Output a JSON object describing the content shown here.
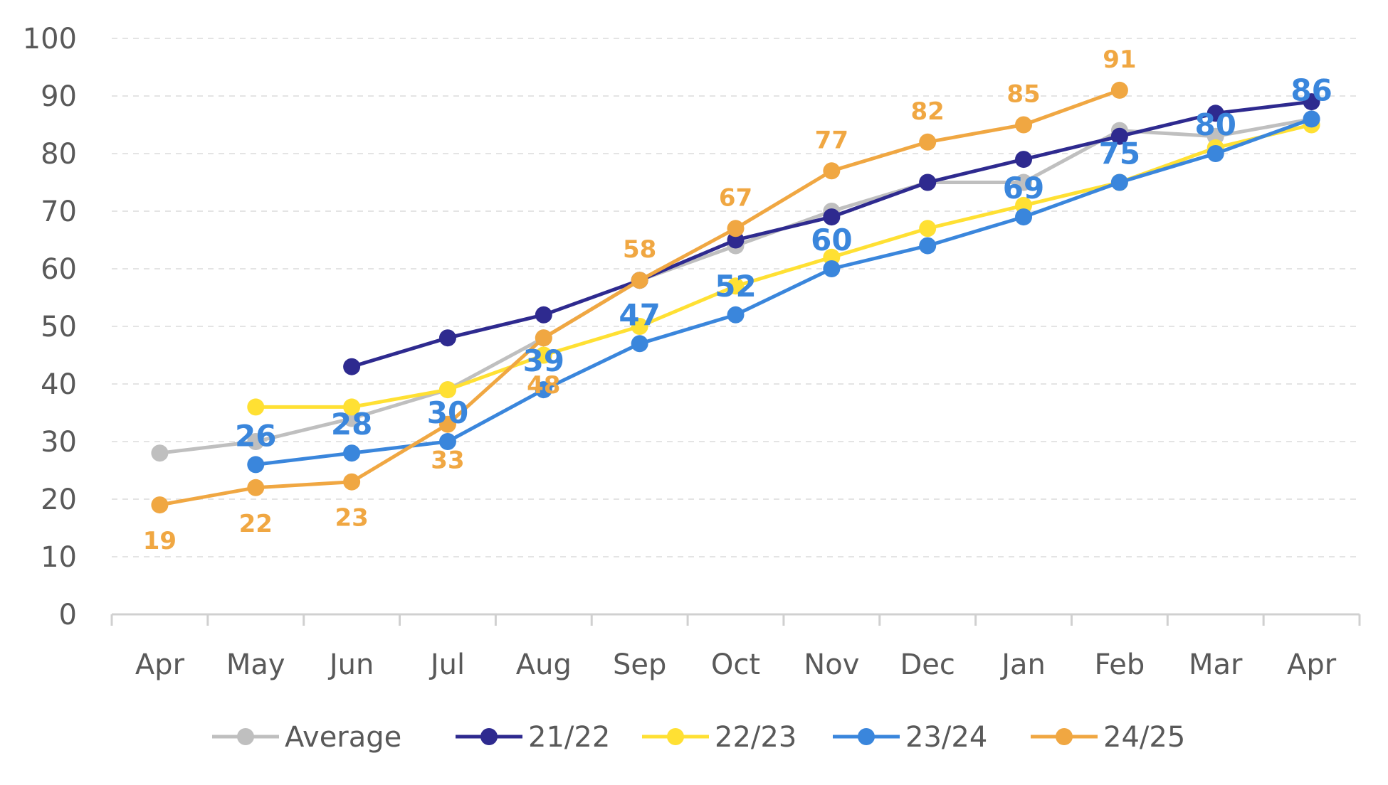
{
  "chart_data": {
    "type": "line",
    "categories": [
      "Apr",
      "May",
      "Jun",
      "Jul",
      "Aug",
      "Sep",
      "Oct",
      "Nov",
      "Dec",
      "Jan",
      "Feb",
      "Mar",
      "Apr"
    ],
    "ylim": [
      0,
      100
    ],
    "yticks": [
      0,
      10,
      20,
      30,
      40,
      50,
      60,
      70,
      80,
      90,
      100
    ],
    "grid": true,
    "legend_position": "bottom",
    "series": [
      {
        "name": "Average",
        "color": "#BFBFBF",
        "values": [
          28,
          30,
          34,
          39,
          48,
          58,
          64,
          70,
          75,
          75,
          84,
          83,
          86
        ]
      },
      {
        "name": "21/22",
        "color": "#2E2A8F",
        "values": [
          null,
          null,
          43,
          48,
          52,
          58,
          65,
          69,
          75,
          79,
          83,
          87,
          89
        ]
      },
      {
        "name": "22/23",
        "color": "#FFE033",
        "values": [
          null,
          36,
          36,
          39,
          45,
          50,
          57,
          62,
          67,
          71,
          75,
          81,
          85
        ]
      },
      {
        "name": "23/24",
        "color": "#3A86DC",
        "values": [
          null,
          26,
          28,
          30,
          39,
          47,
          52,
          60,
          64,
          69,
          75,
          80,
          86
        ],
        "data_labels": [
          null,
          "26",
          "28",
          "30",
          "39",
          "47",
          "52",
          "60",
          null,
          "69",
          "75",
          "80",
          "86"
        ]
      },
      {
        "name": "24/25",
        "color": "#F0A742",
        "values": [
          19,
          22,
          23,
          33,
          48,
          58,
          67,
          77,
          82,
          85,
          91,
          null,
          null
        ],
        "data_labels": [
          "19",
          "22",
          "23",
          "33",
          "48",
          "58",
          "67",
          "77",
          "82",
          "85",
          "91",
          null,
          null
        ]
      }
    ]
  }
}
